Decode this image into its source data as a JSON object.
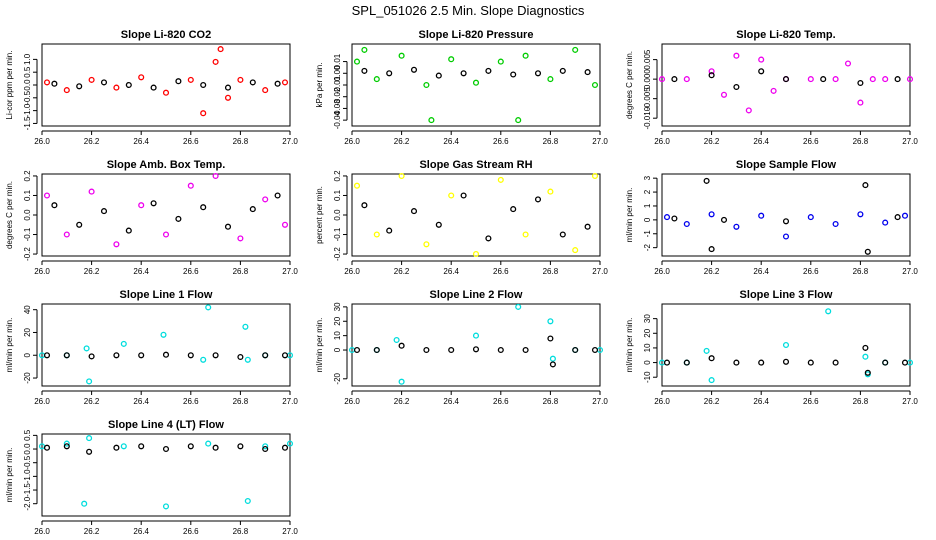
{
  "figure": {
    "title": "SPL_051026  2.5 Min. Slope Diagnostics"
  },
  "chart_data": [
    {
      "type": "scatter",
      "title": "Slope Li-820 CO2",
      "ylabel": "Li-cor ppm per min.",
      "xlim": [
        26.0,
        27.0
      ],
      "ylim": [
        -1.6,
        1.6
      ],
      "xticks": [
        26.0,
        26.2,
        26.4,
        26.6,
        26.8,
        27.0
      ],
      "xtick_labels": [
        "26.0",
        "26.2",
        "26.4",
        "26.6",
        "26.8",
        "27.0"
      ],
      "yticks": [
        -1.5,
        -1.0,
        -0.5,
        0.0,
        0.5,
        1.0
      ],
      "ytick_labels": [
        "-1.5",
        "-1.0",
        "-0.5",
        "0.0",
        "0.5",
        "1.0"
      ],
      "series": [
        {
          "color": "#ff0000",
          "x": [
            26.02,
            26.1,
            26.2,
            26.3,
            26.4,
            26.5,
            26.6,
            26.65,
            26.7,
            26.72,
            26.75,
            26.8,
            26.9,
            26.98
          ],
          "y": [
            0.1,
            -0.2,
            0.2,
            -0.1,
            0.3,
            -0.3,
            0.2,
            -1.1,
            0.9,
            1.4,
            -0.5,
            0.2,
            -0.2,
            0.1
          ]
        },
        {
          "color": "#000000",
          "x": [
            26.05,
            26.15,
            26.25,
            26.35,
            26.45,
            26.55,
            26.65,
            26.75,
            26.85,
            26.95
          ],
          "y": [
            0.05,
            -0.05,
            0.1,
            0.0,
            -0.1,
            0.15,
            0.0,
            -0.1,
            0.1,
            0.05
          ]
        }
      ]
    },
    {
      "type": "scatter",
      "title": "Slope Li-820 Pressure",
      "ylabel": "kPa per min.",
      "xlim": [
        26.0,
        27.0
      ],
      "ylim": [
        -0.045,
        0.025
      ],
      "xticks": [
        26.0,
        26.2,
        26.4,
        26.6,
        26.8,
        27.0
      ],
      "xtick_labels": [
        "26.0",
        "26.2",
        "26.4",
        "26.6",
        "26.8",
        "27.0"
      ],
      "yticks": [
        -0.04,
        -0.03,
        -0.02,
        -0.01,
        0.0,
        0.01
      ],
      "ytick_labels": [
        "-0.04",
        "-0.03",
        "-0.02",
        "-0.01",
        "0.00",
        "0.01"
      ],
      "series": [
        {
          "color": "#00cc00",
          "x": [
            26.02,
            26.05,
            26.1,
            26.2,
            26.3,
            26.32,
            26.4,
            26.5,
            26.6,
            26.67,
            26.7,
            26.8,
            26.9,
            26.98
          ],
          "y": [
            0.01,
            0.02,
            -0.005,
            0.015,
            -0.01,
            -0.04,
            0.012,
            -0.008,
            0.01,
            -0.04,
            0.015,
            -0.005,
            0.02,
            -0.01
          ]
        },
        {
          "color": "#000000",
          "x": [
            26.05,
            26.15,
            26.25,
            26.35,
            26.45,
            26.55,
            26.65,
            26.75,
            26.85,
            26.95
          ],
          "y": [
            0.002,
            0.0,
            0.003,
            -0.002,
            0.0,
            0.002,
            -0.001,
            0.0,
            0.002,
            0.001
          ]
        }
      ]
    },
    {
      "type": "scatter",
      "title": "Slope Li-820 Temp.",
      "ylabel": "degrees C per min.",
      "xlim": [
        26.0,
        27.0
      ],
      "ylim": [
        -0.012,
        0.009
      ],
      "xticks": [
        26.0,
        26.2,
        26.4,
        26.6,
        26.8,
        27.0
      ],
      "xtick_labels": [
        "26.0",
        "26.2",
        "26.4",
        "26.6",
        "26.8",
        "27.0"
      ],
      "yticks": [
        -0.01,
        -0.005,
        0.0,
        0.005
      ],
      "ytick_labels": [
        "-0.010",
        "-0.005",
        "0.000",
        "0.005"
      ],
      "series": [
        {
          "color": "#ee00ee",
          "x": [
            26.0,
            26.1,
            26.2,
            26.25,
            26.3,
            26.35,
            26.4,
            26.45,
            26.5,
            26.6,
            26.7,
            26.75,
            26.8,
            26.85,
            26.9,
            27.0
          ],
          "y": [
            0.0,
            0.0,
            0.002,
            -0.004,
            0.006,
            -0.008,
            0.005,
            -0.003,
            0.0,
            0.0,
            0.0,
            0.004,
            -0.006,
            0.0,
            0.0,
            0.0
          ]
        },
        {
          "color": "#000000",
          "x": [
            26.05,
            26.2,
            26.3,
            26.4,
            26.5,
            26.65,
            26.8,
            26.95
          ],
          "y": [
            0.0,
            0.001,
            -0.002,
            0.002,
            0.0,
            0.0,
            -0.001,
            0.0
          ]
        }
      ]
    },
    {
      "type": "scatter",
      "title": "Slope Amb. Box Temp.",
      "ylabel": "degrees C per min.",
      "xlim": [
        26.0,
        27.0
      ],
      "ylim": [
        -0.21,
        0.21
      ],
      "xticks": [
        26.0,
        26.2,
        26.4,
        26.6,
        26.8,
        27.0
      ],
      "xtick_labels": [
        "26.0",
        "26.2",
        "26.4",
        "26.6",
        "26.8",
        "27.0"
      ],
      "yticks": [
        -0.2,
        -0.1,
        0.0,
        0.1,
        0.2
      ],
      "ytick_labels": [
        "-0.2",
        "-0.1",
        "0.0",
        "0.1",
        "0.2"
      ],
      "series": [
        {
          "color": "#ee00ee",
          "x": [
            26.02,
            26.1,
            26.2,
            26.3,
            26.4,
            26.5,
            26.6,
            26.7,
            26.8,
            26.9,
            26.98
          ],
          "y": [
            0.1,
            -0.1,
            0.12,
            -0.15,
            0.05,
            -0.1,
            0.15,
            0.2,
            -0.12,
            0.08,
            -0.05
          ]
        },
        {
          "color": "#000000",
          "x": [
            26.05,
            26.15,
            26.25,
            26.35,
            26.45,
            26.55,
            26.65,
            26.75,
            26.85,
            26.95
          ],
          "y": [
            0.05,
            -0.05,
            0.02,
            -0.08,
            0.06,
            -0.02,
            0.04,
            -0.06,
            0.03,
            0.1
          ]
        }
      ]
    },
    {
      "type": "scatter",
      "title": "Slope Gas Stream RH",
      "ylabel": "percent per min.",
      "xlim": [
        26.0,
        27.0
      ],
      "ylim": [
        -0.21,
        0.21
      ],
      "xticks": [
        26.0,
        26.2,
        26.4,
        26.6,
        26.8,
        27.0
      ],
      "xtick_labels": [
        "26.0",
        "26.2",
        "26.4",
        "26.6",
        "26.8",
        "27.0"
      ],
      "yticks": [
        -0.2,
        -0.1,
        0.0,
        0.1,
        0.2
      ],
      "ytick_labels": [
        "-0.2",
        "-0.1",
        "0.0",
        "0.1",
        "0.2"
      ],
      "series": [
        {
          "color": "#ffff00",
          "x": [
            26.02,
            26.1,
            26.2,
            26.3,
            26.4,
            26.5,
            26.6,
            26.7,
            26.8,
            26.9,
            26.98
          ],
          "y": [
            0.15,
            -0.1,
            0.2,
            -0.15,
            0.1,
            -0.2,
            0.18,
            -0.1,
            0.12,
            -0.18,
            0.2
          ]
        },
        {
          "color": "#000000",
          "x": [
            26.05,
            26.15,
            26.25,
            26.35,
            26.45,
            26.55,
            26.65,
            26.75,
            26.85,
            26.95
          ],
          "y": [
            0.05,
            -0.08,
            0.02,
            -0.05,
            0.1,
            -0.12,
            0.03,
            0.08,
            -0.1,
            -0.06
          ]
        }
      ]
    },
    {
      "type": "scatter",
      "title": "Slope Sample Flow",
      "ylabel": "ml/min per min.",
      "xlim": [
        26.0,
        27.0
      ],
      "ylim": [
        -2.6,
        3.3
      ],
      "xticks": [
        26.0,
        26.2,
        26.4,
        26.6,
        26.8,
        27.0
      ],
      "xtick_labels": [
        "26.0",
        "26.2",
        "26.4",
        "26.6",
        "26.8",
        "27.0"
      ],
      "yticks": [
        -2,
        -1,
        0,
        1,
        2,
        3
      ],
      "ytick_labels": [
        "-2",
        "-1",
        "0",
        "1",
        "2",
        "3"
      ],
      "series": [
        {
          "color": "#0000ee",
          "x": [
            26.02,
            26.1,
            26.2,
            26.3,
            26.4,
            26.5,
            26.6,
            26.7,
            26.8,
            26.9,
            26.98
          ],
          "y": [
            0.2,
            -0.3,
            0.4,
            -0.5,
            0.3,
            -1.2,
            0.2,
            -0.3,
            0.4,
            -0.2,
            0.3
          ]
        },
        {
          "color": "#000000",
          "x": [
            26.05,
            26.18,
            26.2,
            26.25,
            26.5,
            26.82,
            26.83,
            26.95
          ],
          "y": [
            0.1,
            2.8,
            -2.1,
            0.0,
            -0.1,
            2.5,
            -2.3,
            0.2
          ]
        }
      ]
    },
    {
      "type": "scatter",
      "title": "Slope Line 1 Flow",
      "ylabel": "ml/min per min.",
      "xlim": [
        26.0,
        27.0
      ],
      "ylim": [
        -27,
        45
      ],
      "xticks": [
        26.0,
        26.2,
        26.4,
        26.6,
        26.8,
        27.0
      ],
      "xtick_labels": [
        "26.0",
        "26.2",
        "26.4",
        "26.6",
        "26.8",
        "27.0"
      ],
      "yticks": [
        -20,
        0,
        20,
        40
      ],
      "ytick_labels": [
        "-20",
        "0",
        "20",
        "40"
      ],
      "series": [
        {
          "color": "#00dddd",
          "x": [
            26.0,
            26.1,
            26.18,
            26.19,
            26.33,
            26.49,
            26.65,
            26.67,
            26.82,
            26.83,
            26.9,
            27.0
          ],
          "y": [
            0.0,
            0.0,
            6.0,
            -23.0,
            10.0,
            18.0,
            -4.0,
            42.0,
            25.0,
            -4.0,
            0.0,
            0.0
          ]
        },
        {
          "color": "#000000",
          "x": [
            26.02,
            26.1,
            26.2,
            26.3,
            26.4,
            26.5,
            26.6,
            26.7,
            26.8,
            26.9,
            26.98
          ],
          "y": [
            0.0,
            0.0,
            -1.0,
            0.0,
            0.0,
            0.5,
            0.0,
            0.0,
            -1.5,
            0.0,
            0.0
          ]
        }
      ]
    },
    {
      "type": "scatter",
      "title": "Slope Line 2 Flow",
      "ylabel": "ml/min per min.",
      "xlim": [
        26.0,
        27.0
      ],
      "ylim": [
        -25,
        32
      ],
      "xticks": [
        26.0,
        26.2,
        26.4,
        26.6,
        26.8,
        27.0
      ],
      "xtick_labels": [
        "26.0",
        "26.2",
        "26.4",
        "26.6",
        "26.8",
        "27.0"
      ],
      "yticks": [
        -20,
        0,
        10,
        20,
        30
      ],
      "ytick_labels": [
        "-20",
        "0",
        "10",
        "20",
        "30"
      ],
      "series": [
        {
          "color": "#00dddd",
          "x": [
            26.0,
            26.1,
            26.18,
            26.2,
            26.5,
            26.67,
            26.8,
            26.81,
            26.9,
            27.0
          ],
          "y": [
            0.0,
            0.0,
            7.0,
            -22.0,
            10.0,
            30.0,
            20.0,
            -6.0,
            0.0,
            0.0
          ]
        },
        {
          "color": "#000000",
          "x": [
            26.02,
            26.1,
            26.2,
            26.3,
            26.4,
            26.5,
            26.6,
            26.7,
            26.8,
            26.81,
            26.9,
            26.98
          ],
          "y": [
            0.0,
            0.0,
            3.0,
            0.0,
            0.0,
            0.5,
            0.0,
            0.0,
            8.0,
            -10.0,
            0.0,
            0.0
          ]
        }
      ]
    },
    {
      "type": "scatter",
      "title": "Slope Line 3 Flow",
      "ylabel": "ml/min per min.",
      "xlim": [
        26.0,
        27.0
      ],
      "ylim": [
        -16,
        40
      ],
      "xticks": [
        26.0,
        26.2,
        26.4,
        26.6,
        26.8,
        27.0
      ],
      "xtick_labels": [
        "26.0",
        "26.2",
        "26.4",
        "26.6",
        "26.8",
        "27.0"
      ],
      "yticks": [
        -10,
        0,
        10,
        20,
        30
      ],
      "ytick_labels": [
        "-10",
        "0",
        "10",
        "20",
        "30"
      ],
      "series": [
        {
          "color": "#00dddd",
          "x": [
            26.0,
            26.1,
            26.18,
            26.2,
            26.5,
            26.67,
            26.82,
            26.83,
            26.9,
            27.0
          ],
          "y": [
            0.0,
            0.0,
            8.0,
            -12.0,
            12.0,
            35.0,
            4.0,
            -8.0,
            0.0,
            0.0
          ]
        },
        {
          "color": "#000000",
          "x": [
            26.02,
            26.1,
            26.2,
            26.3,
            26.4,
            26.5,
            26.6,
            26.7,
            26.82,
            26.83,
            26.9,
            26.98
          ],
          "y": [
            0.0,
            0.0,
            3.0,
            0.0,
            0.0,
            0.5,
            0.0,
            0.0,
            10.0,
            -7.0,
            0.0,
            0.0
          ]
        }
      ]
    },
    {
      "type": "scatter",
      "title": "Slope Line 4 (LT) Flow",
      "ylabel": "ml/min per min.",
      "xlim": [
        26.0,
        27.0
      ],
      "ylim": [
        -2.45,
        0.55
      ],
      "xticks": [
        26.0,
        26.2,
        26.4,
        26.6,
        26.8,
        27.0
      ],
      "xtick_labels": [
        "26.0",
        "26.2",
        "26.4",
        "26.6",
        "26.8",
        "27.0"
      ],
      "yticks": [
        -2.0,
        -1.5,
        -1.0,
        -0.5,
        0.0,
        0.5
      ],
      "ytick_labels": [
        "-2.0",
        "-1.5",
        "-1.0",
        "-0.5",
        "0.0",
        "0.5"
      ],
      "series": [
        {
          "color": "#00dddd",
          "x": [
            26.0,
            26.1,
            26.17,
            26.19,
            26.33,
            26.5,
            26.67,
            26.83,
            26.9,
            27.0
          ],
          "y": [
            0.1,
            0.2,
            -2.0,
            0.4,
            0.1,
            -2.1,
            0.2,
            -1.9,
            0.1,
            0.2
          ]
        },
        {
          "color": "#000000",
          "x": [
            26.02,
            26.1,
            26.19,
            26.3,
            26.4,
            26.5,
            26.6,
            26.7,
            26.8,
            26.9,
            26.98
          ],
          "y": [
            0.05,
            0.1,
            -0.1,
            0.05,
            0.1,
            0.0,
            0.1,
            0.05,
            0.1,
            0.0,
            0.05
          ]
        }
      ]
    }
  ]
}
